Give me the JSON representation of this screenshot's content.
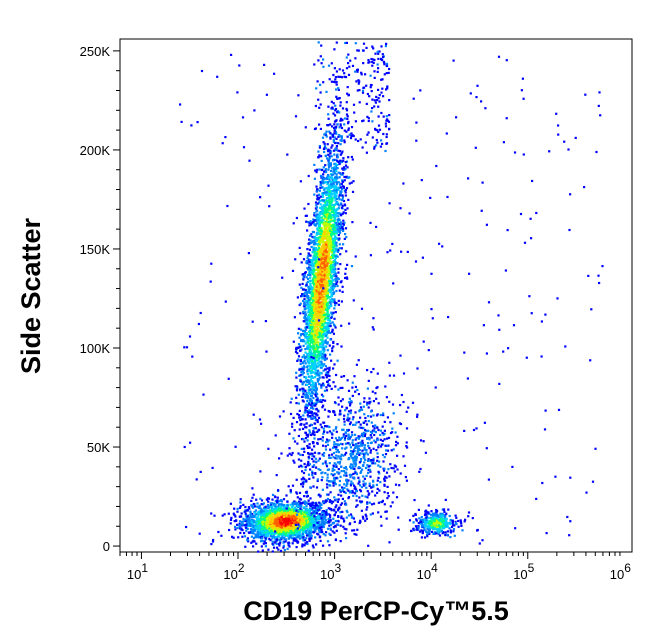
{
  "chart_data": {
    "type": "scatter",
    "subtype": "flow-cytometry density dot plot",
    "xlabel": "CD19 PerCP-Cy™5.5",
    "ylabel": "Side Scatter",
    "x_scale": "log",
    "xlim": [
      6,
      1200000
    ],
    "ylim": [
      -3000,
      256000
    ],
    "x_ticks": [
      {
        "value": 10,
        "label": "10",
        "exp": "1"
      },
      {
        "value": 100,
        "label": "10",
        "exp": "2"
      },
      {
        "value": 1000,
        "label": "10",
        "exp": "3"
      },
      {
        "value": 10000,
        "label": "10",
        "exp": "4"
      },
      {
        "value": 100000,
        "label": "10",
        "exp": "5"
      },
      {
        "value": 1000000,
        "label": "10",
        "exp": "6"
      }
    ],
    "y_ticks": [
      {
        "value": 0,
        "label": "0"
      },
      {
        "value": 50000,
        "label": "50K"
      },
      {
        "value": 100000,
        "label": "100K"
      },
      {
        "value": 150000,
        "label": "150K"
      },
      {
        "value": 200000,
        "label": "200K"
      },
      {
        "value": 250000,
        "label": "250K"
      }
    ],
    "grid": false,
    "color_scale": [
      "#0000ff",
      "#0080ff",
      "#00d0ff",
      "#00ff80",
      "#c0ff00",
      "#ffd000",
      "#ff6000",
      "#ff0000"
    ],
    "populations": [
      {
        "x_center": 300,
        "y_center": 13000,
        "density": "high"
      },
      {
        "x_center": 700,
        "y_center": 130000,
        "density": "high"
      },
      {
        "x_center": 11000,
        "y_center": 12000,
        "density": "medium"
      }
    ]
  }
}
